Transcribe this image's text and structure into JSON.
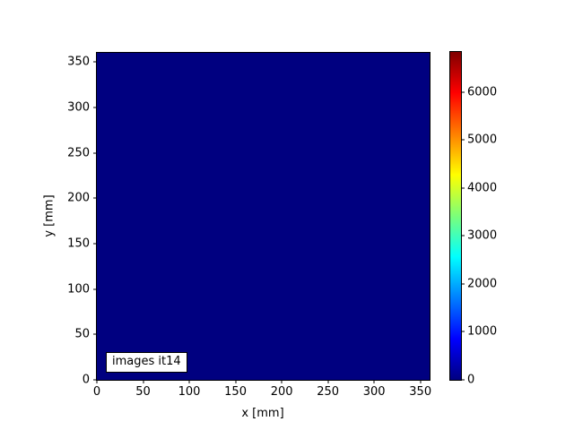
{
  "chart_data": {
    "type": "heatmap",
    "title": "",
    "xlabel": "x [mm]",
    "ylabel": "y [mm]",
    "x_range": [
      0,
      360
    ],
    "y_range": [
      0,
      360
    ],
    "x_ticks": [
      0,
      50,
      100,
      150,
      200,
      250,
      300,
      350
    ],
    "y_ticks": [
      0,
      50,
      100,
      150,
      200,
      250,
      300,
      350
    ],
    "uniform_value": 0,
    "annotation": "images it14",
    "colormap": "jet",
    "colorbar": {
      "vmin": 0,
      "vmax": 6840,
      "ticks": [
        0,
        1000,
        2000,
        3000,
        4000,
        5000,
        6000
      ],
      "gradient_stops": [
        {
          "pos": 0.0,
          "color": "#000080"
        },
        {
          "pos": 0.125,
          "color": "#0000ff"
        },
        {
          "pos": 0.375,
          "color": "#00ffff"
        },
        {
          "pos": 0.5,
          "color": "#7cff79"
        },
        {
          "pos": 0.625,
          "color": "#ffff00"
        },
        {
          "pos": 0.875,
          "color": "#ff0000"
        },
        {
          "pos": 1.0,
          "color": "#800000"
        }
      ]
    },
    "colors": {
      "figure_background": "#ffffff",
      "zero_value_fill": "#000080",
      "tick_color": "#000000",
      "text_color": "#000000",
      "annotation_background": "#ffffff",
      "annotation_border": "#000000"
    }
  }
}
